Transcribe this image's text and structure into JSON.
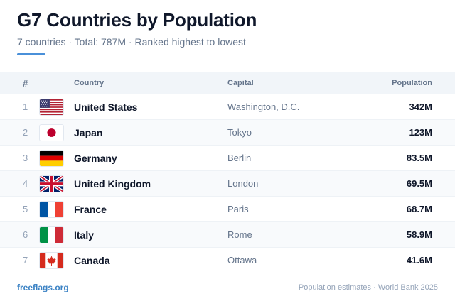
{
  "header": {
    "title": "G7 Countries by Population",
    "subtitle": "7 countries · Total: 787M · Ranked highest to lowest",
    "accent_color": "#4a90d9"
  },
  "table": {
    "columns": {
      "rank": "#",
      "country": "Country",
      "capital": "Capital",
      "population": "Population"
    },
    "rows": [
      {
        "rank": "1",
        "flag": "us-flag-icon",
        "country": "United States",
        "capital": "Washington, D.C.",
        "population": "342M"
      },
      {
        "rank": "2",
        "flag": "japan-flag-icon",
        "country": "Japan",
        "capital": "Tokyo",
        "population": "123M"
      },
      {
        "rank": "3",
        "flag": "germany-flag-icon",
        "country": "Germany",
        "capital": "Berlin",
        "population": "83.5M"
      },
      {
        "rank": "4",
        "flag": "uk-flag-icon",
        "country": "United Kingdom",
        "capital": "London",
        "population": "69.5M"
      },
      {
        "rank": "5",
        "flag": "france-flag-icon",
        "country": "France",
        "capital": "Paris",
        "population": "68.7M"
      },
      {
        "rank": "6",
        "flag": "italy-flag-icon",
        "country": "Italy",
        "capital": "Rome",
        "population": "58.9M"
      },
      {
        "rank": "7",
        "flag": "canada-flag-icon",
        "country": "Canada",
        "capital": "Ottawa",
        "population": "41.6M"
      }
    ]
  },
  "footer": {
    "link": "freeflags.org",
    "source": "Population estimates · World Bank 2025"
  }
}
